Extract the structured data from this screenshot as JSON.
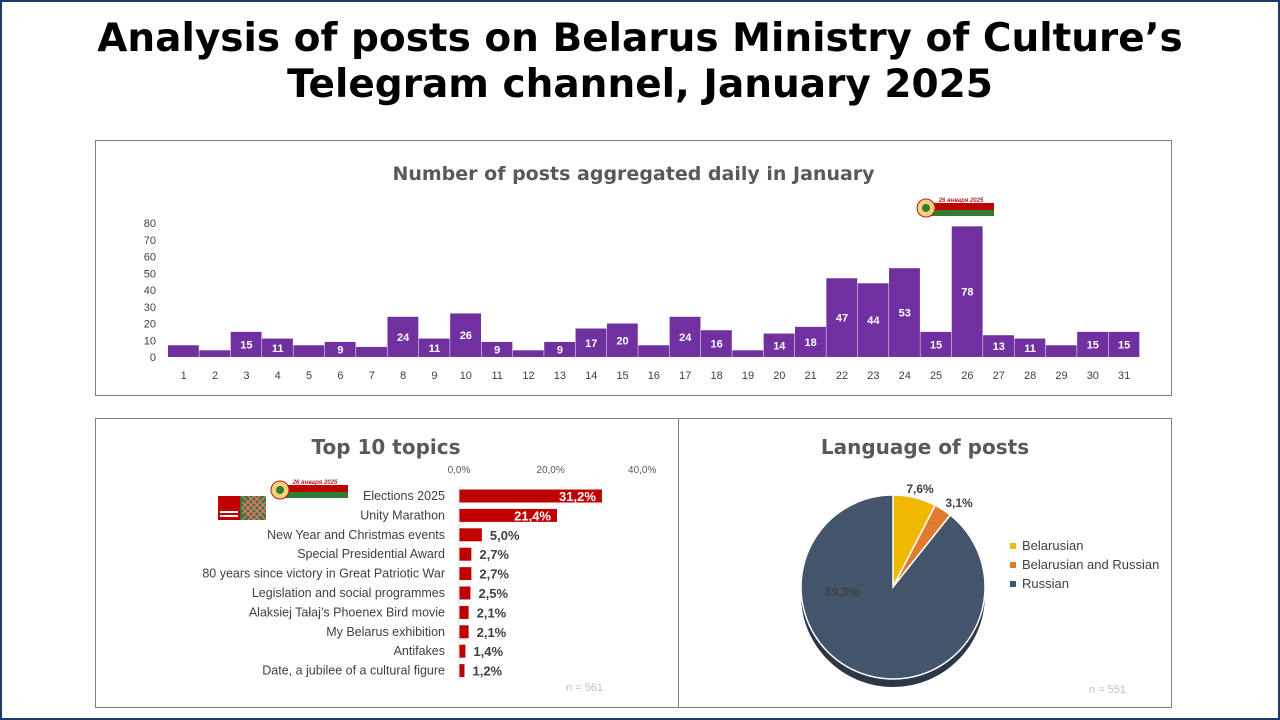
{
  "title_line1": "Analysis of posts on Belarus Ministry of Culture’s",
  "title_line2": "Telegram channel, January 2025",
  "badge_text": "26 января 2025",
  "chart_data": [
    {
      "type": "bar",
      "title": "Number of posts aggregated daily in January",
      "categories": [
        "1",
        "2",
        "3",
        "4",
        "5",
        "6",
        "7",
        "8",
        "9",
        "10",
        "11",
        "12",
        "13",
        "14",
        "15",
        "16",
        "17",
        "18",
        "19",
        "20",
        "21",
        "22",
        "23",
        "24",
        "25",
        "26",
        "27",
        "28",
        "29",
        "30",
        "31"
      ],
      "values": [
        7,
        4,
        15,
        11,
        7,
        9,
        6,
        24,
        11,
        26,
        9,
        4,
        9,
        17,
        20,
        7,
        24,
        16,
        4,
        14,
        18,
        47,
        44,
        53,
        15,
        78,
        13,
        11,
        7,
        15,
        15
      ],
      "labels": [
        "",
        "",
        "15",
        "11",
        "",
        "9",
        "",
        "24",
        "11",
        "26",
        "9",
        "",
        "9",
        "17",
        "20",
        "",
        "24",
        "16",
        "",
        "14",
        "18",
        "47",
        "44",
        "53",
        "15",
        "78",
        "13",
        "11",
        "",
        "15",
        "15"
      ],
      "y_ticks": [
        "0",
        "10",
        "20",
        "30",
        "40",
        "50",
        "60",
        "70",
        "80"
      ],
      "ylim": [
        0,
        80
      ],
      "color": "#7030a0",
      "grid": false
    },
    {
      "type": "bar",
      "orientation": "horizontal",
      "title": "Top 10 topics",
      "categories": [
        "Elections 2025",
        "Unity Marathon",
        "New Year and Christmas events",
        "Special Presidential Award",
        "80 years since victory in Great Patriotic War",
        "Legislation and social programmes",
        "Alaksiej Tałaj’s Phoenex Bird movie",
        "My Belarus exhibition",
        "Antifakes",
        "Date, a jubilee of a cultural figure"
      ],
      "values": [
        31.2,
        21.4,
        5.0,
        2.7,
        2.7,
        2.5,
        2.1,
        2.1,
        1.4,
        1.2
      ],
      "labels": [
        "31,2%",
        "21,4%",
        "5,0%",
        "2,7%",
        "2,7%",
        "2,5%",
        "2,1%",
        "2,1%",
        "1,4%",
        "1,2%"
      ],
      "x_ticks": [
        "0,0%",
        "20,0%",
        "40,0%"
      ],
      "xlim": [
        0,
        40
      ],
      "color": "#c00000",
      "note": "n = 561"
    },
    {
      "type": "pie",
      "title": "Language of posts",
      "categories": [
        "Belarusian",
        "Belarusian and Russian",
        "Russian"
      ],
      "values": [
        7.6,
        3.1,
        89.3
      ],
      "labels": [
        "7,6%",
        "3,1%",
        "89,3%"
      ],
      "colors": [
        "#f0b800",
        "#e07a2f",
        "#44546a"
      ],
      "legend_position": "right",
      "note": "n = 551"
    }
  ]
}
